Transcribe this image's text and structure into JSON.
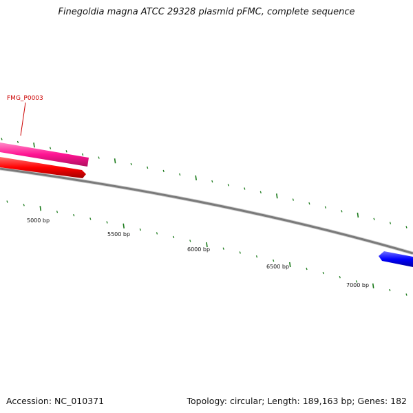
{
  "title": "Finegoldia magna ATCC 29328 plasmid pFMC, complete sequence",
  "footer": {
    "accession": "Accession: NC_010371",
    "summary": "Topology: circular; Length: 189,163 bp; Genes: 182"
  },
  "colors": {
    "backbone": "#7a7a7a",
    "tick": "#1a7a1a",
    "gene_label": "#cc0000",
    "gene_pink": "#ff1493",
    "gene_red": "#ff0000",
    "gene_blue": "#0000ff"
  },
  "axis_labels": [
    {
      "text": "5000 bp"
    },
    {
      "text": "5500 bp"
    },
    {
      "text": "6000 bp"
    },
    {
      "text": "6500 bp"
    },
    {
      "text": "7000 bp"
    }
  ],
  "gene_labels": [
    {
      "text": "FMG_P0003"
    }
  ]
}
